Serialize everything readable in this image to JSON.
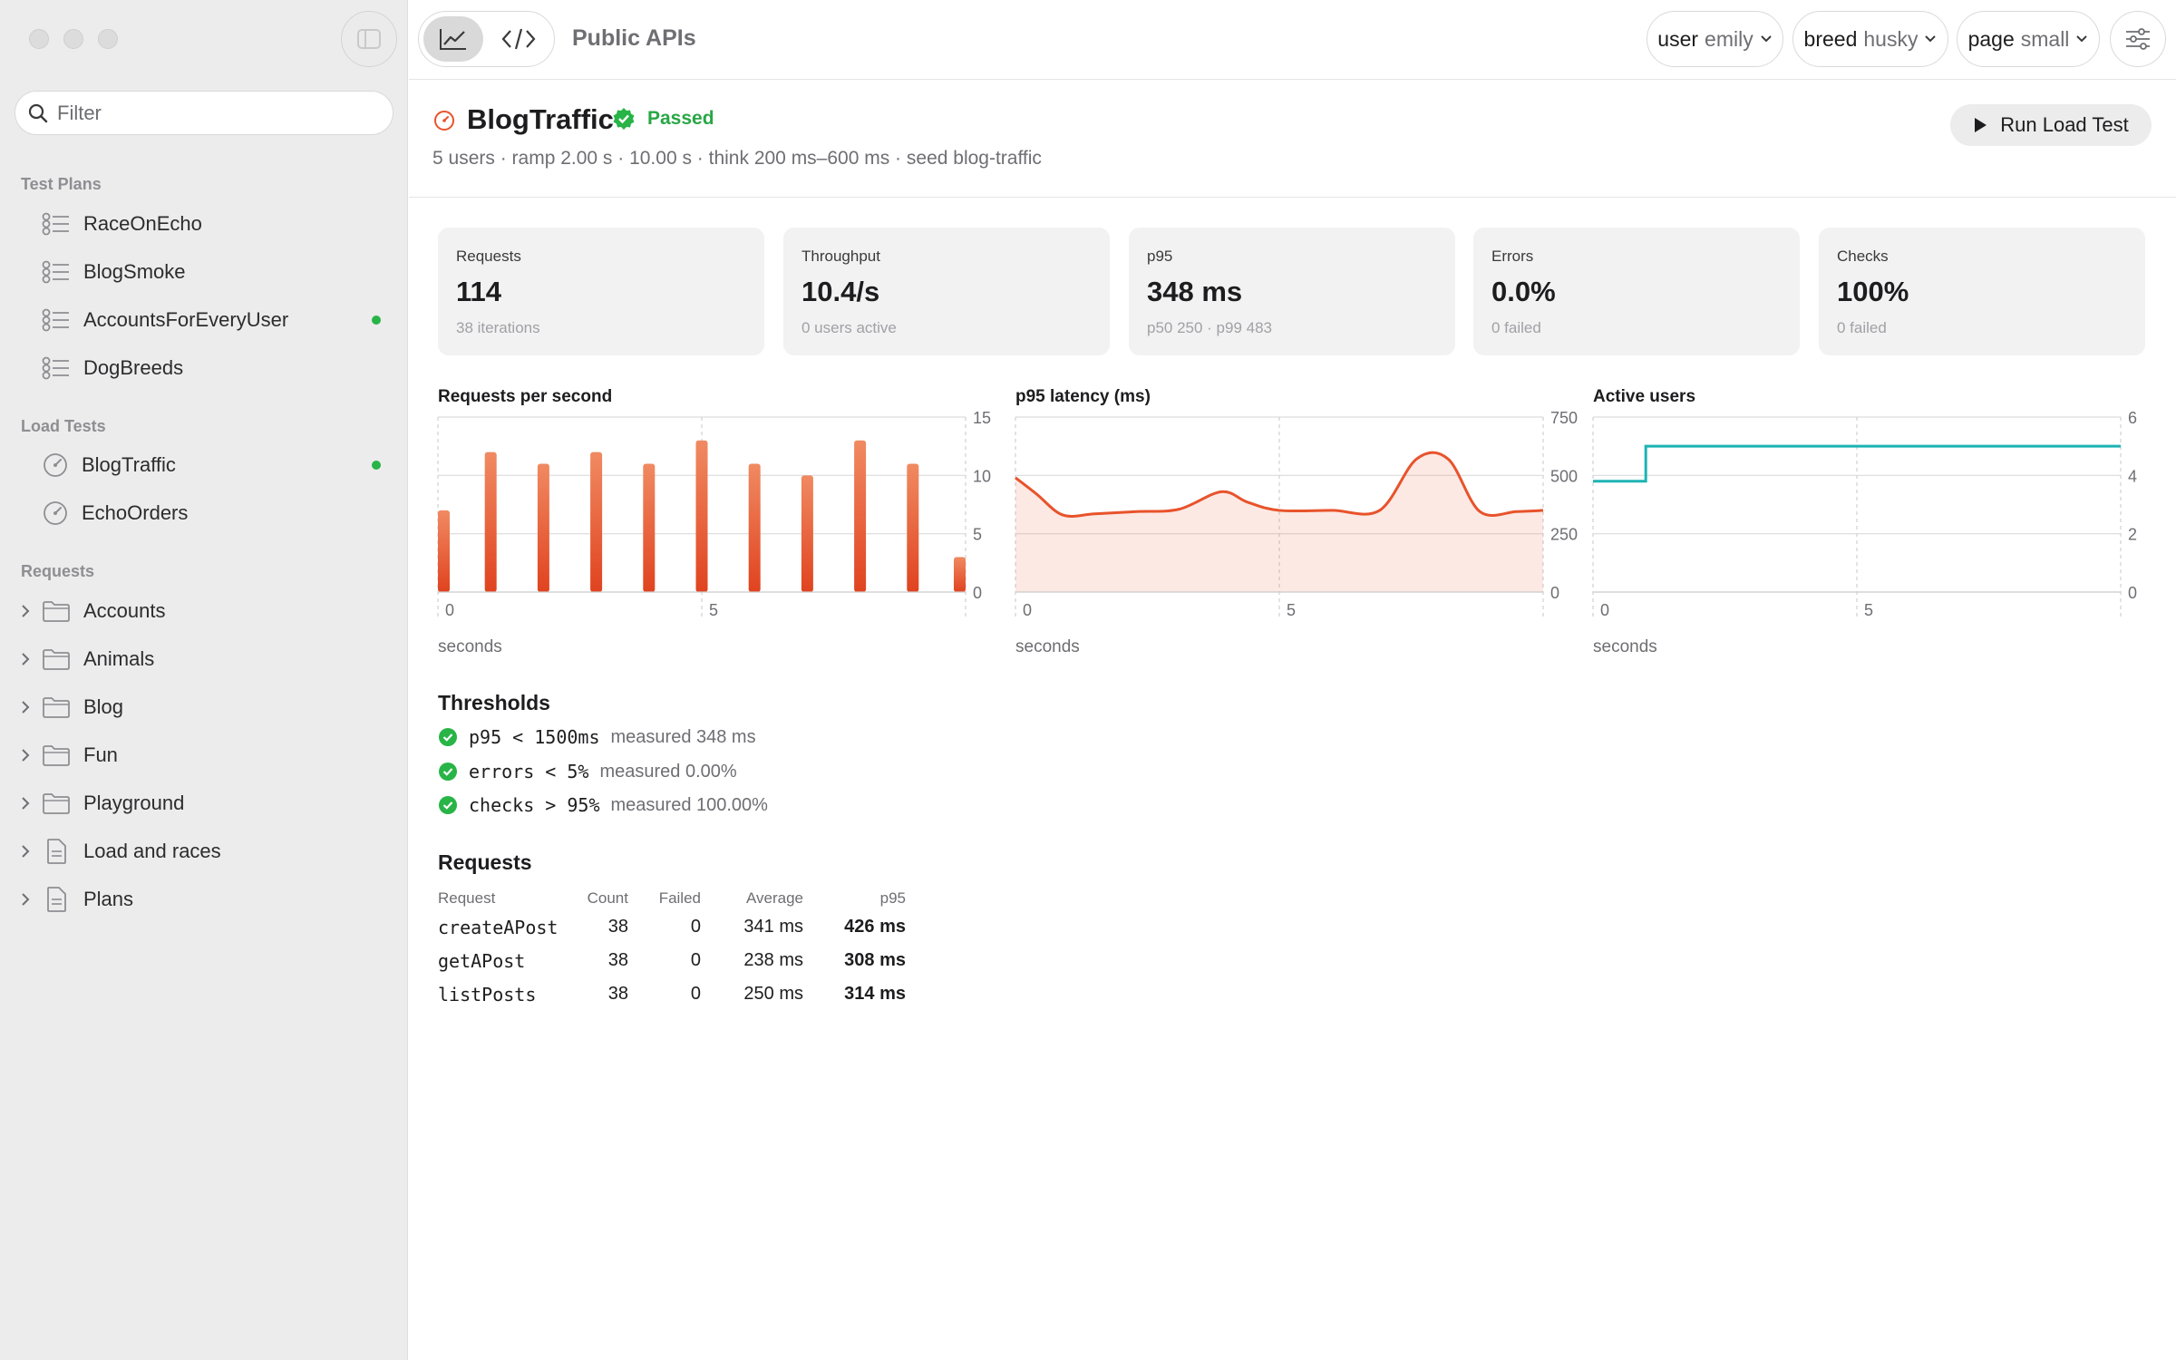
{
  "app": {
    "title": "Public APIs"
  },
  "sidebar": {
    "filter_placeholder": "Filter",
    "sections": [
      {
        "label": "Test Plans",
        "items": [
          {
            "label": "RaceOnEcho",
            "icon": "checklist-icon",
            "dot": false
          },
          {
            "label": "BlogSmoke",
            "icon": "checklist-icon",
            "dot": false
          },
          {
            "label": "AccountsForEveryUser",
            "icon": "checklist-icon",
            "dot": true
          },
          {
            "label": "DogBreeds",
            "icon": "checklist-icon",
            "dot": false
          }
        ]
      },
      {
        "label": "Load Tests",
        "items": [
          {
            "label": "BlogTraffic",
            "icon": "gauge-icon",
            "dot": true
          },
          {
            "label": "EchoOrders",
            "icon": "gauge-icon",
            "dot": false
          }
        ]
      },
      {
        "label": "Requests",
        "items": [
          {
            "label": "Accounts",
            "icon": "folder-icon"
          },
          {
            "label": "Animals",
            "icon": "folder-icon"
          },
          {
            "label": "Blog",
            "icon": "folder-icon"
          },
          {
            "label": "Fun",
            "icon": "folder-icon"
          },
          {
            "label": "Playground",
            "icon": "folder-icon"
          },
          {
            "label": "Load and races",
            "icon": "document-icon"
          },
          {
            "label": "Plans",
            "icon": "document-icon"
          }
        ]
      }
    ]
  },
  "toolbar": {
    "env": [
      {
        "key": "user",
        "value": "emily"
      },
      {
        "key": "breed",
        "value": "husky"
      },
      {
        "key": "page",
        "value": "small"
      }
    ]
  },
  "test": {
    "title": "BlogTraffic",
    "status": "Passed",
    "meta": "5 users · ramp 2.00 s · 10.00 s · think 200 ms–600 ms · seed blog-traffic",
    "run_label": "Run Load Test"
  },
  "colors": {
    "accent": "#e8532b",
    "pass": "#28b446",
    "users_line": "#1fb3b3"
  },
  "cards": [
    {
      "label": "Requests",
      "value": "114",
      "sub": "38 iterations"
    },
    {
      "label": "Throughput",
      "value": "10.4/s",
      "sub": "0 users active"
    },
    {
      "label": "p95",
      "value": "348 ms",
      "sub": "p50 250 · p99 483"
    },
    {
      "label": "Errors",
      "value": "0.0%",
      "sub": "0 failed"
    },
    {
      "label": "Checks",
      "value": "100%",
      "sub": "0 failed"
    }
  ],
  "chart_data": [
    {
      "type": "bar",
      "title": "Requests per second",
      "xlabel": "seconds",
      "x": [
        0,
        1,
        2,
        3,
        4,
        5,
        6,
        7,
        8,
        9,
        10
      ],
      "values": [
        7,
        12,
        11,
        12,
        11,
        13,
        11,
        10,
        13,
        11,
        3
      ],
      "xlim": [
        0,
        10
      ],
      "ylim": [
        0,
        15
      ],
      "xticks": [
        0,
        5
      ],
      "yticks": [
        0,
        5,
        10,
        15
      ]
    },
    {
      "type": "area",
      "title": "p95 latency (ms)",
      "xlabel": "seconds",
      "x": [
        0,
        0.4,
        0.9,
        1.5,
        2.3,
        3.1,
        3.9,
        4.4,
        5.0,
        6.0,
        6.9,
        7.6,
        8.2,
        8.8,
        9.5,
        10
      ],
      "y": [
        490,
        420,
        330,
        335,
        345,
        355,
        430,
        385,
        350,
        350,
        350,
        570,
        570,
        345,
        345,
        350
      ],
      "xlim": [
        0,
        10
      ],
      "ylim": [
        0,
        750
      ],
      "xticks": [
        0,
        5
      ],
      "yticks": [
        0,
        250,
        500,
        750
      ]
    },
    {
      "type": "line",
      "title": "Active users",
      "xlabel": "seconds",
      "x": [
        0,
        1,
        1,
        10
      ],
      "y": [
        3.8,
        3.8,
        5,
        5
      ],
      "xlim": [
        0,
        10
      ],
      "ylim": [
        0,
        6
      ],
      "xticks": [
        0,
        5
      ],
      "yticks": [
        0,
        2,
        4,
        6
      ]
    }
  ],
  "thresholds": {
    "title": "Thresholds",
    "rows": [
      {
        "expr": "p95 < 1500ms",
        "measured": "measured 348 ms"
      },
      {
        "expr": "errors < 5%",
        "measured": "measured 0.00%"
      },
      {
        "expr": "checks > 95%",
        "measured": "measured 100.00%"
      }
    ]
  },
  "requests": {
    "title": "Requests",
    "columns": [
      "Request",
      "Count",
      "Failed",
      "Average",
      "p95"
    ],
    "rows": [
      [
        "createAPost",
        "38",
        "0",
        "341 ms",
        "426 ms"
      ],
      [
        "getAPost",
        "38",
        "0",
        "238 ms",
        "308 ms"
      ],
      [
        "listPosts",
        "38",
        "0",
        "250 ms",
        "314 ms"
      ]
    ]
  }
}
